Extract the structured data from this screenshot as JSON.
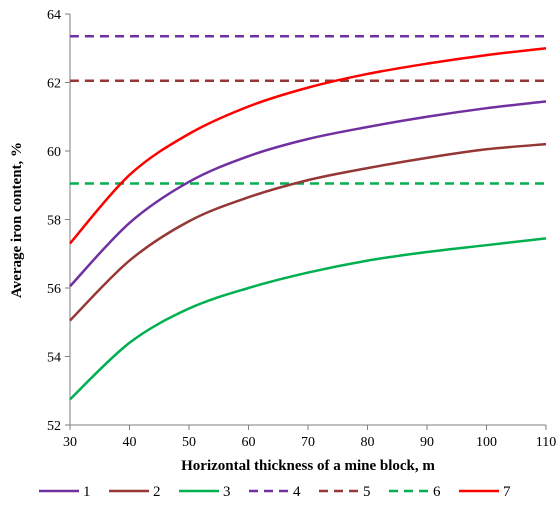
{
  "chart_data": {
    "type": "line",
    "title": "",
    "xlabel": "Horizontal  thickness of a mine block, m",
    "ylabel": "Average iron content, %",
    "xlim": [
      30,
      110
    ],
    "ylim": [
      52,
      64
    ],
    "xticks": [
      "30",
      "40",
      "50",
      "60",
      "70",
      "80",
      "90",
      "100",
      "110"
    ],
    "yticks": [
      "52",
      "54",
      "56",
      "58",
      "60",
      "62",
      "64"
    ],
    "grid": false,
    "legend_position": "bottom",
    "x": [
      30,
      40,
      50,
      60,
      70,
      80,
      90,
      100,
      110
    ],
    "series": [
      {
        "name": "1",
        "color": "#7030A0",
        "dash": "solid",
        "values": [
          56.05,
          57.9,
          59.1,
          59.85,
          60.35,
          60.7,
          61.0,
          61.25,
          61.45
        ]
      },
      {
        "name": "2",
        "color": "#953735",
        "dash": "solid",
        "values": [
          55.05,
          56.8,
          57.95,
          58.65,
          59.15,
          59.5,
          59.8,
          60.05,
          60.2
        ]
      },
      {
        "name": "3",
        "color": "#00B050",
        "dash": "solid",
        "values": [
          52.75,
          54.4,
          55.4,
          56.0,
          56.45,
          56.8,
          57.05,
          57.25,
          57.45
        ]
      },
      {
        "name": "4",
        "color": "#7030A0",
        "dash": "dashed",
        "values": [
          63.35,
          63.35,
          63.35,
          63.35,
          63.35,
          63.35,
          63.35,
          63.35,
          63.35
        ]
      },
      {
        "name": "5",
        "color": "#953735",
        "dash": "dashed",
        "values": [
          62.05,
          62.05,
          62.05,
          62.05,
          62.05,
          62.05,
          62.05,
          62.05,
          62.05
        ]
      },
      {
        "name": "6",
        "color": "#00B050",
        "dash": "dashed",
        "values": [
          59.05,
          59.05,
          59.05,
          59.05,
          59.05,
          59.05,
          59.05,
          59.05,
          59.05
        ]
      },
      {
        "name": "7",
        "color": "#FF0000",
        "dash": "solid",
        "values": [
          57.3,
          59.3,
          60.5,
          61.3,
          61.85,
          62.25,
          62.55,
          62.8,
          63.0
        ]
      }
    ]
  }
}
